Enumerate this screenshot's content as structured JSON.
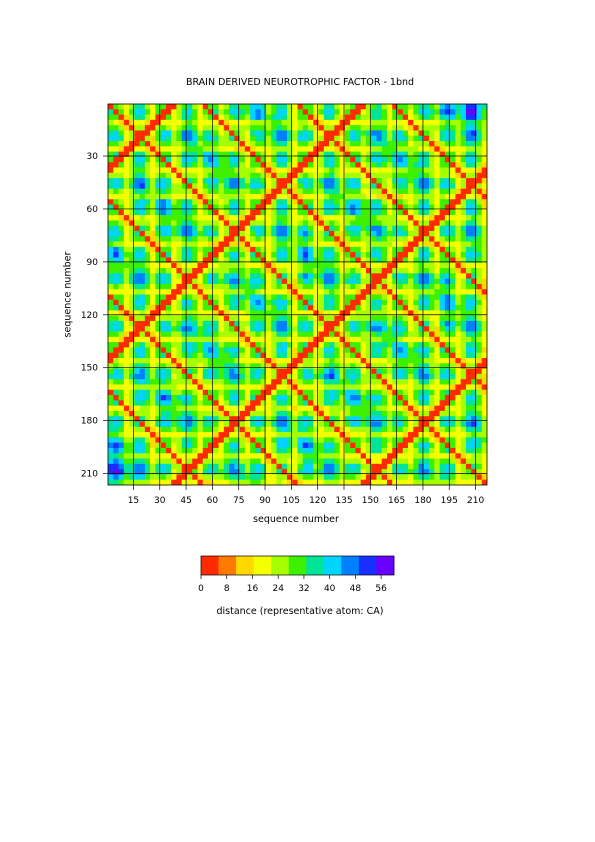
{
  "chart_data": {
    "type": "heatmap",
    "title": "BRAIN DERIVED NEUROTROPHIC FACTOR - 1bnd",
    "xlabel": "sequence number",
    "ylabel": "sequence number",
    "x_ticks": [
      15,
      30,
      45,
      60,
      75,
      90,
      105,
      120,
      135,
      150,
      165,
      180,
      195,
      210
    ],
    "y_ticks": [
      30,
      60,
      90,
      120,
      150,
      180,
      210
    ],
    "range": [
      1,
      216
    ],
    "diagonal_offsets": [
      0,
      54,
      108,
      162
    ],
    "colorbar": {
      "label": "distance (representative atom: CA)",
      "ticks": [
        0,
        8,
        16,
        24,
        32,
        40,
        48,
        56
      ],
      "range": [
        0,
        60
      ],
      "colors": [
        "#ff2a00",
        "#ff7a00",
        "#ffd800",
        "#f4ff00",
        "#a6ff00",
        "#3cf000",
        "#00e49a",
        "#00d4ff",
        "#0080ff",
        "#1830ff",
        "#6a00ff"
      ]
    }
  }
}
